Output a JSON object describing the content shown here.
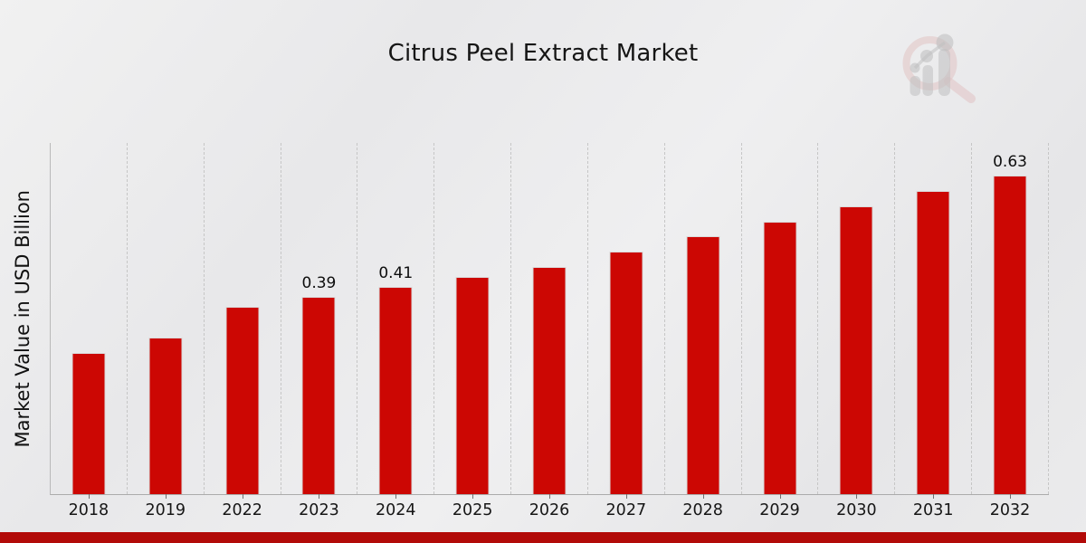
{
  "title": "Citrus Peel Extract Market",
  "y_axis_label": "Market Value in USD Billion",
  "chart_data": {
    "type": "bar",
    "title": "Citrus Peel Extract Market",
    "ylabel": "Market Value in USD Billion",
    "xlabel": "",
    "categories": [
      "2018",
      "2019",
      "2022",
      "2023",
      "2024",
      "2025",
      "2026",
      "2027",
      "2028",
      "2029",
      "2030",
      "2031",
      "2032"
    ],
    "values": [
      0.28,
      0.31,
      0.37,
      0.39,
      0.41,
      0.43,
      0.45,
      0.48,
      0.51,
      0.54,
      0.57,
      0.6,
      0.63
    ],
    "bar_labels": [
      "",
      "",
      "",
      "0.39",
      "0.41",
      "",
      "",
      "",
      "",
      "",
      "",
      "",
      "0.63"
    ],
    "unit": "USD Billion",
    "ylim": [
      0,
      0.695
    ],
    "y_ticks_visible": false,
    "grid": "vertical-dashed",
    "legend": "none"
  },
  "colors": {
    "bar": "#cc0703",
    "bar_edge": "#dadada",
    "bottom_band": "#b20a08",
    "axis": "#ababab",
    "gridline": "#c6c6c6",
    "text": "#151515",
    "watermark_ring": "#d9a2a2",
    "watermark_gray": "#9d9d9d"
  },
  "logo": {
    "name": "magnifier-growth-chart-watermark"
  }
}
